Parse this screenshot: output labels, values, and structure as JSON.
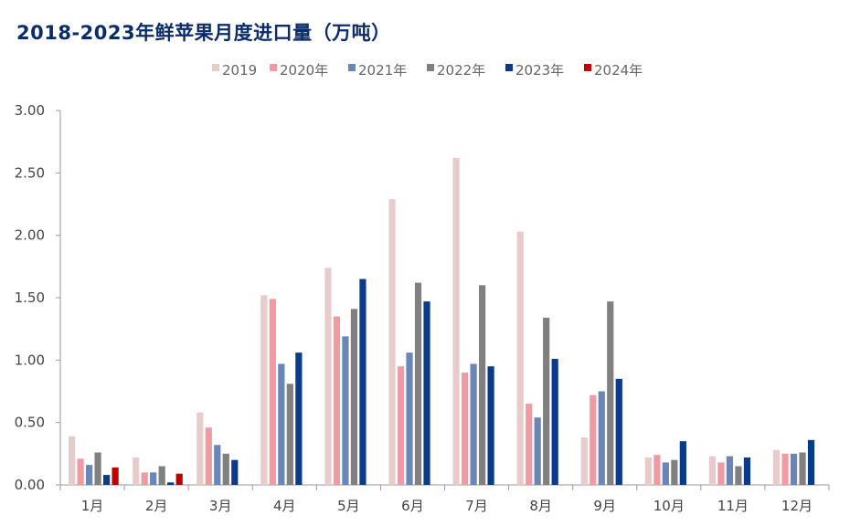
{
  "chart_data": {
    "type": "bar",
    "title": "2018-2023年鲜苹果月度进口量（万吨）",
    "categories": [
      "1月",
      "2月",
      "3月",
      "4月",
      "5月",
      "6月",
      "7月",
      "8月",
      "9月",
      "10月",
      "11月",
      "12月"
    ],
    "ylim": [
      0,
      3.0
    ],
    "yticks": [
      "0.00",
      "0.50",
      "1.00",
      "1.50",
      "2.00",
      "2.50",
      "3.00"
    ],
    "grid": false,
    "legend_position": "top",
    "series": [
      {
        "name": "2019",
        "color": "#e8cccc",
        "values": [
          0.39,
          0.22,
          0.58,
          1.52,
          1.74,
          2.29,
          2.62,
          2.03,
          0.38,
          0.22,
          0.23,
          0.28
        ]
      },
      {
        "name": "2020年",
        "color": "#f09aa3",
        "values": [
          0.21,
          0.1,
          0.46,
          1.49,
          1.35,
          0.95,
          0.9,
          0.65,
          0.72,
          0.24,
          0.18,
          0.25
        ]
      },
      {
        "name": "2021年",
        "color": "#6a86b8",
        "values": [
          0.16,
          0.1,
          0.32,
          0.97,
          1.19,
          1.06,
          0.97,
          0.54,
          0.75,
          0.18,
          0.23,
          0.25
        ]
      },
      {
        "name": "2022年",
        "color": "#808080",
        "values": [
          0.26,
          0.15,
          0.25,
          0.81,
          1.41,
          1.62,
          1.6,
          1.34,
          1.47,
          0.2,
          0.15,
          0.26
        ]
      },
      {
        "name": "2023年",
        "color": "#0a3a8a",
        "values": [
          0.08,
          0.02,
          0.2,
          1.06,
          1.65,
          1.47,
          0.95,
          1.01,
          0.85,
          0.35,
          0.22,
          0.36
        ]
      },
      {
        "name": "2024年",
        "color": "#c00000",
        "values": [
          0.14,
          0.09,
          null,
          null,
          null,
          null,
          null,
          null,
          null,
          null,
          null,
          null
        ]
      }
    ]
  }
}
